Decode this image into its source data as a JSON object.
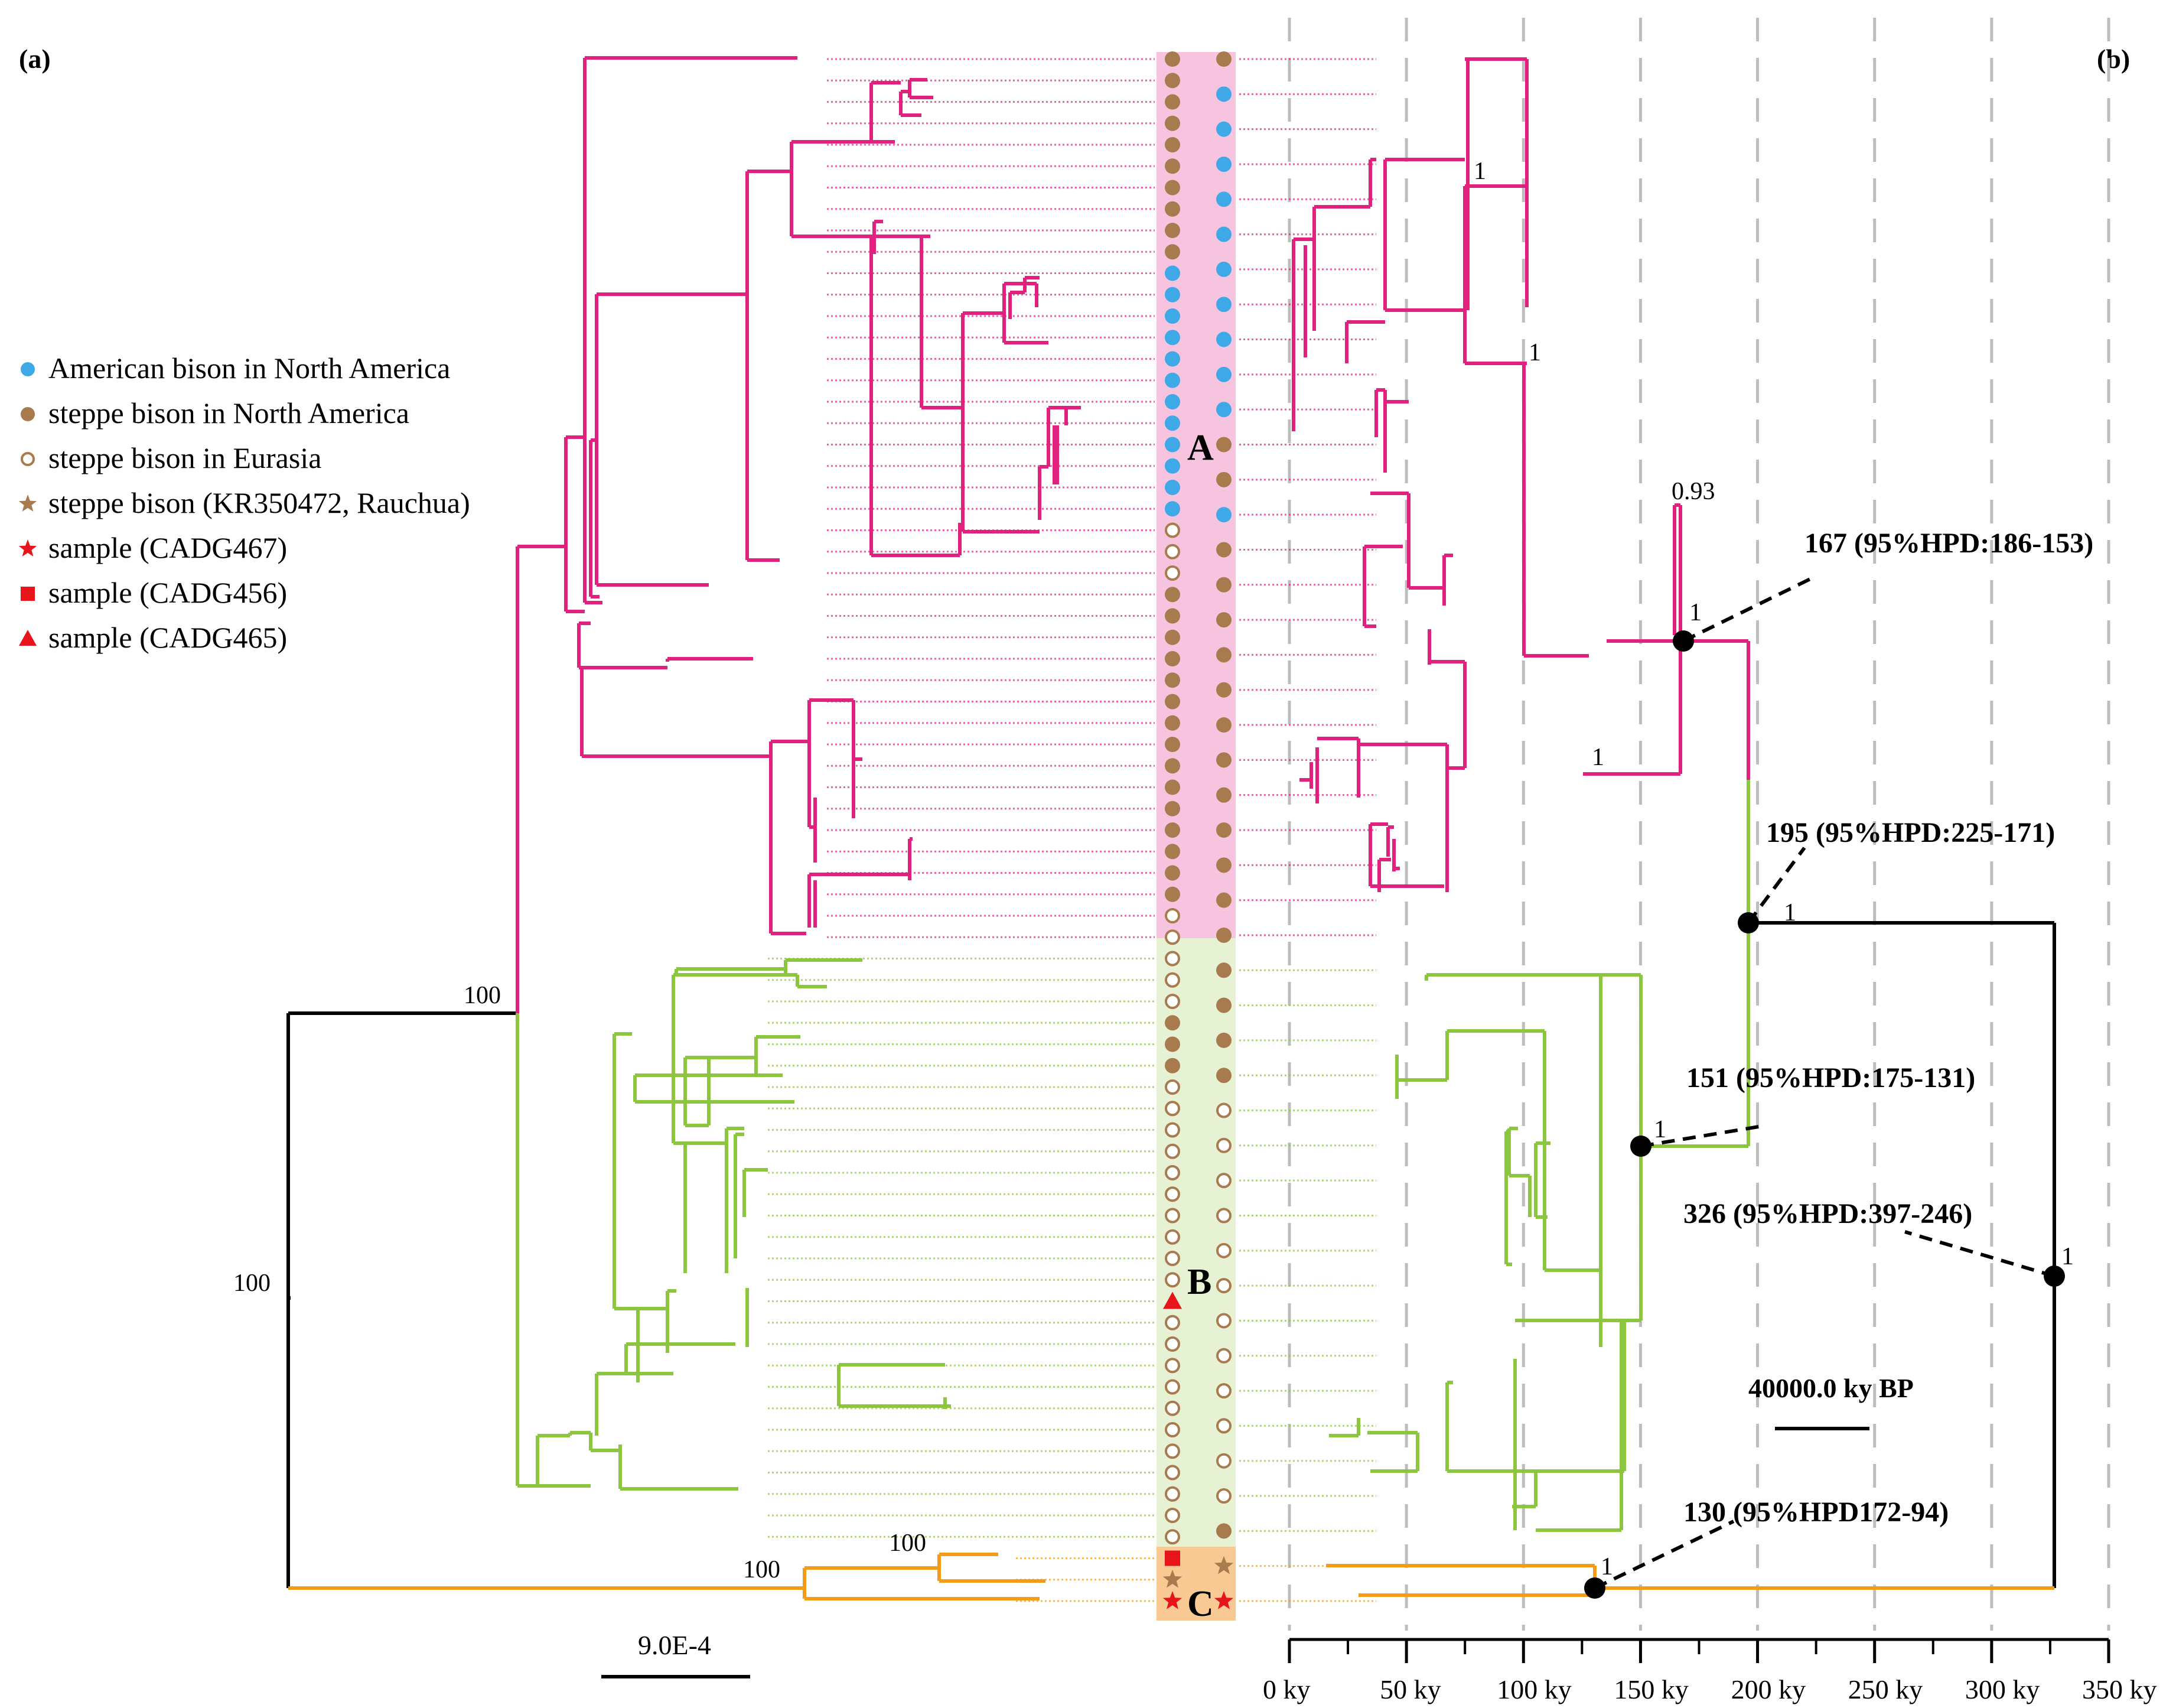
{
  "panels": {
    "left_label": "(a)",
    "right_label": "(b)"
  },
  "colors": {
    "clade_a": "#e0217e",
    "clade_b": "#8cc63e",
    "clade_c": "#f39c1a",
    "root": "#000000",
    "clade_a_band": "#f7c4e0",
    "clade_b_band": "#e7f1d4",
    "clade_c_band": "#f8c992",
    "american_bison": "#3fa9e8",
    "steppe_bison": "#a87b4f",
    "sample": "#e8141c",
    "gridline": "#bdbdbd"
  },
  "legend": [
    {
      "marker": "filled-circle-blue-icon",
      "label": "American bison in North America"
    },
    {
      "marker": "filled-circle-brown-icon",
      "label": "steppe bison in North America"
    },
    {
      "marker": "open-circle-brown-icon",
      "label": "steppe bison in Eurasia"
    },
    {
      "marker": "star-brown-icon",
      "label": "steppe bison (KR350472, Rauchua)"
    },
    {
      "marker": "star-red-icon",
      "label": "sample (CADG467)"
    },
    {
      "marker": "square-red-icon",
      "label": "sample (CADG456)"
    },
    {
      "marker": "triangle-red-icon",
      "label": "sample (CADG465)"
    }
  ],
  "clades": {
    "a": "A",
    "b": "B",
    "c": "C"
  },
  "ml_tree": {
    "root_support": "100",
    "ab_support": "100",
    "c_support": "100",
    "c_inner_support": "100",
    "scale_label": "9.0E-4"
  },
  "dated_tree": {
    "node_dates": [
      {
        "node": "A",
        "label": "167 (95%HPD:186-153)"
      },
      {
        "node": "AB",
        "label": "195 (95%HPD:225-171)"
      },
      {
        "node": "B",
        "label": "151 (95%HPD:175-131)"
      },
      {
        "node": "root",
        "label": "326 (95%HPD:397-246)"
      },
      {
        "node": "C",
        "label": "130 (95%HPD172-94)"
      }
    ],
    "posteriors": {
      "a_top": "1",
      "a_inner": "1",
      "a_sub": "0.93",
      "a_bottom": "1",
      "a_node": "1",
      "ab_node": "1",
      "b_node": "1",
      "root_node": "1",
      "c_node": "1"
    },
    "scale_label": "40000.0 ky BP",
    "axis": {
      "ticks": [
        "0 ky",
        "50 ky",
        "100 ky",
        "150 ky",
        "200 ky",
        "250 ky",
        "300 ky",
        "350 ky"
      ],
      "values": [
        0,
        50,
        100,
        150,
        200,
        250,
        300,
        350
      ]
    }
  },
  "tip_markers": {
    "left": [
      "brown",
      "brown",
      "brown",
      "brown",
      "brown",
      "brown",
      "brown",
      "brown",
      "brown",
      "brown",
      "blue",
      "blue",
      "blue",
      "blue",
      "blue",
      "blue",
      "blue",
      "blue",
      "blue",
      "blue",
      "blue",
      "blue",
      "open",
      "open",
      "open",
      "brown",
      "brown",
      "brown",
      "brown",
      "brown",
      "brown",
      "brown",
      "brown",
      "brown",
      "brown",
      "brown",
      "brown",
      "brown",
      "brown",
      "brown",
      "open",
      "open",
      "open",
      "open",
      "open",
      "brown",
      "brown",
      "brown",
      "open",
      "open",
      "open",
      "open",
      "open",
      "open",
      "open",
      "open",
      "open",
      "open",
      "triangle",
      "open",
      "open",
      "open",
      "open",
      "open",
      "open",
      "open",
      "open",
      "open",
      "open",
      "open",
      "square",
      "star-brown",
      "star-red"
    ],
    "right": [
      "brown",
      "blue",
      "blue",
      "blue",
      "blue",
      "blue",
      "blue",
      "blue",
      "blue",
      "blue",
      "blue",
      "brown",
      "brown",
      "blue",
      "brown",
      "brown",
      "brown",
      "brown",
      "brown",
      "brown",
      "brown",
      "brown",
      "brown",
      "brown",
      "brown",
      "brown",
      "brown",
      "brown",
      "brown",
      "brown",
      "open",
      "open",
      "open",
      "open",
      "open",
      "open",
      "open",
      "open",
      "open",
      "open",
      "open",
      "open",
      "brown",
      "star-brown",
      "star-red"
    ]
  }
}
